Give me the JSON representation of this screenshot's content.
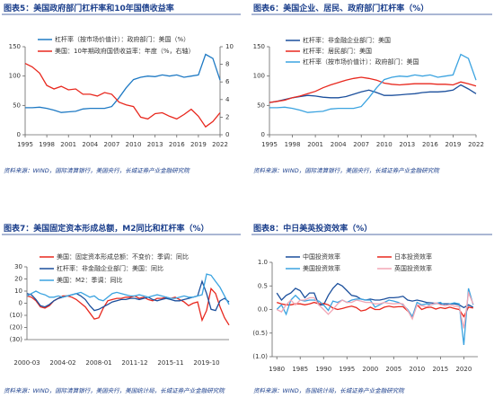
{
  "chart_data": [
    {
      "type": "line",
      "title": "图表5：美国政府部门杠杆率和10年国债收益率",
      "source": "资料来源：WIND，国际清算银行，美国央行，长城证券产业金融研究院",
      "x": [
        1995,
        1996,
        1997,
        1998,
        1999,
        2000,
        2001,
        2002,
        2003,
        2004,
        2005,
        2006,
        2007,
        2008,
        2009,
        2010,
        2011,
        2012,
        2013,
        2014,
        2015,
        2016,
        2017,
        2018,
        2019,
        2020,
        2021,
        2022
      ],
      "xlim": [
        1995,
        2022
      ],
      "xticks": [
        1995,
        1998,
        2001,
        2004,
        2007,
        2010,
        2013,
        2016,
        2019,
        2022
      ],
      "ylim": [
        0,
        150
      ],
      "yticks": [
        0,
        50,
        100,
        150
      ],
      "y2lim": [
        0,
        10
      ],
      "y2ticks": [
        0,
        2,
        4,
        6,
        8,
        10
      ],
      "series": [
        {
          "name": "杠杆率（按市场价值计）：政府部门：美国（%）",
          "color": "#1f7ac4",
          "values": [
            46,
            46,
            47,
            45,
            42,
            38,
            39,
            40,
            44,
            45,
            45,
            45,
            48,
            63,
            80,
            94,
            98,
            100,
            99,
            102,
            100,
            102,
            98,
            100,
            102,
            137,
            130,
            93
          ]
        },
        {
          "name": "美国：10年期政府国债收益率：年度（%，右轴）",
          "color": "#e8281e",
          "axis": "y2",
          "values": [
            8.1,
            7.7,
            7.0,
            5.6,
            5.2,
            5.5,
            5.1,
            5.2,
            4.6,
            4.6,
            4.4,
            4.8,
            4.6,
            3.7,
            3.4,
            3.2,
            2.0,
            1.8,
            2.4,
            2.5,
            2.1,
            1.8,
            2.3,
            2.9,
            2.1,
            0.9,
            1.5,
            2.5
          ]
        }
      ]
    },
    {
      "type": "line",
      "title": "图表6：美国企业、居民、政府部门杠杆率（%）",
      "source": "资料来源：WIND，国际清算银行，美国央行，长城证券产业金融研究院",
      "x": [
        1995,
        1996,
        1997,
        1998,
        1999,
        2000,
        2001,
        2002,
        2003,
        2004,
        2005,
        2006,
        2007,
        2008,
        2009,
        2010,
        2011,
        2012,
        2013,
        2014,
        2015,
        2016,
        2017,
        2018,
        2019,
        2020,
        2021,
        2022
      ],
      "xlim": [
        1995,
        2022
      ],
      "xticks": [
        1995,
        1998,
        2001,
        2004,
        2007,
        2010,
        2013,
        2016,
        2019,
        2022
      ],
      "ylim": [
        0,
        150
      ],
      "yticks": [
        0,
        50,
        100,
        150
      ],
      "series": [
        {
          "name": "杠杆率：非金融企业部门：美国",
          "color": "#1b4f9c",
          "values": [
            55,
            57,
            60,
            63,
            65,
            67,
            66,
            64,
            63,
            63,
            65,
            69,
            73,
            76,
            72,
            67,
            67,
            68,
            69,
            70,
            72,
            73,
            73,
            74,
            76,
            85,
            78,
            70
          ]
        },
        {
          "name": "杠杆率：居民部门：美国",
          "color": "#e8281e",
          "values": [
            55,
            57,
            59,
            63,
            66,
            70,
            74,
            80,
            85,
            89,
            93,
            96,
            98,
            96,
            93,
            88,
            86,
            85,
            86,
            87,
            87,
            87,
            86,
            86,
            85,
            90,
            87,
            83
          ]
        },
        {
          "name": "杠杆率（按市场价值计）：政府部门：美国",
          "color": "#3ba3e0",
          "values": [
            46,
            46,
            47,
            45,
            42,
            38,
            39,
            40,
            44,
            45,
            45,
            45,
            48,
            63,
            80,
            94,
            98,
            100,
            99,
            102,
            100,
            102,
            98,
            100,
            102,
            137,
            130,
            93
          ]
        }
      ]
    },
    {
      "type": "line",
      "title": "图表7：美国固定资本形成总额，M2同比和杠杆率（%）",
      "source": "资料来源：WIND，国际清算银行，美国央行，美国统计局，长城证券产业金融研究院",
      "categories": [
        "2000-03",
        null,
        null,
        null,
        null,
        null,
        null,
        null,
        "2004-02",
        null,
        null,
        null,
        null,
        null,
        null,
        null,
        "2008-01",
        null,
        null,
        null,
        null,
        null,
        null,
        null,
        "2011-12",
        null,
        null,
        null,
        null,
        null,
        null,
        null,
        "2015-11",
        null,
        null,
        null,
        null,
        null,
        null,
        null,
        "2019-10",
        null,
        null,
        null,
        null,
        null
      ],
      "ylim": [
        -30,
        30
      ],
      "yticks": [
        30,
        20,
        10,
        {
          "value": 0,
          "label": "0"
        },
        {
          "value": -10,
          "label": "(10)"
        },
        {
          "value": -20,
          "label": "(20)"
        },
        {
          "value": -30,
          "label": "(30)"
        }
      ],
      "series": [
        {
          "name": "美国：固定资本形成总额：不变价：季调：同比",
          "color": "#e8281e",
          "values": [
            6,
            5,
            2,
            -3,
            -4,
            -2,
            2,
            4,
            6,
            6,
            5,
            3,
            0,
            -3,
            -8,
            -13,
            -12,
            -4,
            2,
            3,
            4,
            4,
            5,
            5,
            6,
            4,
            5,
            3,
            2,
            4,
            4,
            5,
            4,
            5,
            3,
            1,
            -2,
            0,
            1,
            -14,
            -6,
            12,
            8,
            -3,
            -12,
            -18
          ]
        },
        {
          "name": "杠杆率：非金融企业部门：美国：同比",
          "color": "#1b4f9c",
          "values": [
            8,
            7,
            3,
            -2,
            -3,
            -1,
            2,
            4,
            5,
            6,
            7,
            8,
            6,
            3,
            -2,
            -6,
            -5,
            -3,
            -1,
            1,
            2,
            3,
            3,
            4,
            4,
            3,
            4,
            5,
            3,
            2,
            3,
            4,
            3,
            2,
            2,
            3,
            4,
            5,
            6,
            18,
            8,
            -5,
            -6,
            2,
            4,
            1
          ]
        },
        {
          "name": "美国：M2：季调：同比",
          "color": "#3ba3e0",
          "values": [
            6,
            8,
            10,
            8,
            7,
            5,
            5,
            6,
            5,
            6,
            7,
            8,
            9,
            7,
            5,
            6,
            3,
            2,
            5,
            8,
            9,
            8,
            7,
            6,
            6,
            7,
            6,
            5,
            6,
            7,
            6,
            5,
            4,
            4,
            5,
            6,
            5,
            5,
            6,
            7,
            24,
            23,
            18,
            13,
            6,
            -1
          ]
        }
      ]
    },
    {
      "type": "line",
      "title": "图表8：中日美英投资效率（%）",
      "source": "资料来源：WIND，各国统计局，长城证券产业金融研究院",
      "x": [
        1980,
        1981,
        1982,
        1983,
        1984,
        1985,
        1986,
        1987,
        1988,
        1989,
        1990,
        1991,
        1992,
        1993,
        1994,
        1995,
        1996,
        1997,
        1998,
        1999,
        2000,
        2001,
        2002,
        2003,
        2004,
        2005,
        2006,
        2007,
        2008,
        2009,
        2010,
        2011,
        2012,
        2013,
        2014,
        2015,
        2016,
        2017,
        2018,
        2019,
        2020,
        2021,
        2022
      ],
      "xlim": [
        1979,
        2023
      ],
      "xticks": [
        1980,
        1985,
        1990,
        1995,
        2000,
        2005,
        2010,
        2015,
        2020
      ],
      "ylim": [
        -1,
        1
      ],
      "yticks": [
        {
          "value": 1,
          "label": "1.0"
        },
        0.5,
        {
          "value": 0,
          "label": "0.0"
        },
        {
          "value": -0.5,
          "label": "(0.5)"
        },
        {
          "value": -1,
          "label": "(1.0)"
        }
      ],
      "series": [
        {
          "name": "中国投资效率",
          "color": "#1b4f9c",
          "values": [
            0.35,
            0.2,
            0.3,
            0.35,
            0.45,
            0.4,
            0.25,
            0.35,
            0.35,
            0.1,
            0.1,
            0.3,
            0.45,
            0.55,
            0.5,
            0.4,
            0.3,
            0.28,
            0.22,
            0.2,
            0.22,
            0.2,
            0.2,
            0.22,
            0.25,
            0.25,
            0.26,
            0.28,
            0.2,
            0.18,
            0.2,
            0.18,
            0.15,
            0.14,
            0.13,
            0.12,
            0.12,
            0.12,
            0.12,
            0.1,
            0.04,
            0.1,
            0.05
          ]
        },
        {
          "name": "日本投资效率",
          "color": "#e8281e",
          "values": [
            0.15,
            0.12,
            0.1,
            0.1,
            0.12,
            0.12,
            0.1,
            0.12,
            0.15,
            0.12,
            0.13,
            0.1,
            0.03,
            0,
            0.02,
            0.05,
            0.07,
            0.04,
            -0.03,
            -0.01,
            0.05,
            0,
            0,
            0.05,
            0.07,
            0.05,
            0.06,
            0.06,
            -0.03,
            -0.15,
            0.1,
            0,
            0.04,
            0.05,
            0.01,
            0.04,
            0.02,
            0.05,
            0.02,
            0,
            -0.15,
            0.05,
            0.03
          ]
        },
        {
          "name": "美国投资效率",
          "color": "#3ba3e0",
          "values": [
            0,
            0.1,
            -0.1,
            0.2,
            0.3,
            0.2,
            0.18,
            0.2,
            0.2,
            0.18,
            0.1,
            -0.02,
            0.18,
            0.15,
            0.2,
            0.15,
            0.2,
            0.22,
            0.22,
            0.2,
            0.2,
            0.05,
            0.1,
            0.15,
            0.2,
            0.18,
            0.15,
            0.1,
            0,
            -0.15,
            0.15,
            0.1,
            0.12,
            0.1,
            0.13,
            0.15,
            0.08,
            0.12,
            0.14,
            0.12,
            -0.75,
            0.45,
            0.1
          ]
        },
        {
          "name": "英国投资效率",
          "color": "#f2a7b5",
          "values": [
            0,
            -0.05,
            0.1,
            0.2,
            0.1,
            0.2,
            0.2,
            0.25,
            0.25,
            0.1,
            0,
            -0.1,
            0,
            0.12,
            0.2,
            0.15,
            0.15,
            0.2,
            0.18,
            0.15,
            0.15,
            0.12,
            0.12,
            0.15,
            0.13,
            0.12,
            0.13,
            0.12,
            -0.02,
            -0.2,
            0.1,
            0.08,
            0.06,
            0.1,
            0.14,
            0.1,
            0.08,
            0.1,
            0.07,
            0.06,
            -0.4,
            0.35,
            0.12
          ]
        }
      ]
    }
  ]
}
